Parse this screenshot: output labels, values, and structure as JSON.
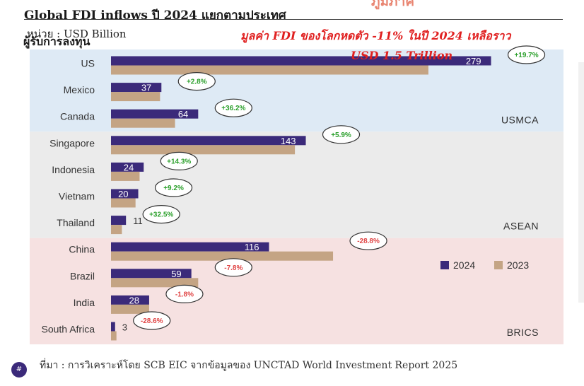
{
  "header": {
    "title": "Global FDI inflows ปี 2024 แยกตามประเทศ",
    "subtitle": "ผู้รับการลงทุน",
    "unit": "หน่วย : USD Billion",
    "top_fragment": "ภูมิภาค"
  },
  "annotation": {
    "line1": "มูลค่า FDI ของโลกหดตัว -11% ในปี 2024 เหลือราว",
    "line2": "USD 1.5 Trillion"
  },
  "footer": {
    "source": "ที่มา : การวิเคราะห์โดย SCB EIC จากข้อมูลของ UNCTAD World Investment Report 2025",
    "page_badge": "#"
  },
  "colors": {
    "series_2024": "#3b2a7a",
    "series_2023": "#c4a484",
    "usmca_band": "#deeaf5",
    "asean_band": "#ebebeb",
    "brics_band": "#f6e1e1",
    "positive_change": "#2ca02c",
    "negative_change": "#e04444"
  },
  "chart_data": {
    "type": "bar",
    "orientation": "horizontal",
    "categories": [
      "US",
      "Mexico",
      "Canada",
      "Singapore",
      "Indonesia",
      "Vietnam",
      "Thailand",
      "China",
      "Brazil",
      "India",
      "South Africa"
    ],
    "series": [
      {
        "name": "2024",
        "values": [
          279,
          37,
          64,
          143,
          24,
          20,
          11,
          116,
          59,
          28,
          3
        ],
        "labels": [
          "279",
          "37",
          "64",
          "143",
          "24",
          "20",
          "11",
          "116",
          "59",
          "28",
          "3"
        ]
      },
      {
        "name": "2023",
        "values": [
          233,
          36,
          47,
          135,
          21,
          18,
          8,
          163,
          64,
          28,
          4
        ]
      }
    ],
    "changes": [
      "+19.7%",
      "+2.8%",
      "+36.2%",
      "+5.9%",
      "+14.3%",
      "+9.2%",
      "+32.5%",
      "-28.8%",
      "-7.8%",
      "-1.8%",
      "-28.6%"
    ],
    "groups": [
      {
        "name": "USMCA",
        "members": [
          "US",
          "Mexico",
          "Canada"
        ]
      },
      {
        "name": "ASEAN",
        "members": [
          "Singapore",
          "Indonesia",
          "Vietnam",
          "Thailand"
        ]
      },
      {
        "name": "BRICS",
        "members": [
          "China",
          "Brazil",
          "India",
          "South Africa"
        ]
      }
    ],
    "xlim": [
      0,
      300
    ],
    "legend": {
      "position": "right-middle",
      "entries": [
        "2024",
        "2023"
      ]
    },
    "grid": false
  }
}
